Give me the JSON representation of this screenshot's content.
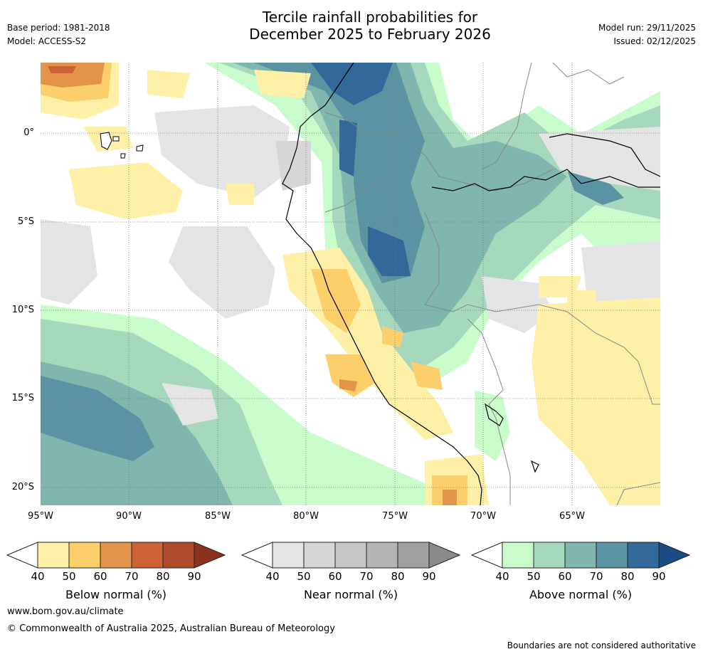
{
  "header": {
    "title_line1": "Tercile rainfall probabilities for",
    "title_line2": "December 2025 to February 2026",
    "base_period": "Base period: 1981-2018",
    "model": "Model: ACCESS-S2",
    "model_run": "Model run: 29/11/2025",
    "issued": "Issued: 02/12/2025"
  },
  "map": {
    "x_ticks": [
      "95°W",
      "90°W",
      "85°W",
      "80°W",
      "75°W",
      "70°W",
      "65°W"
    ],
    "y_ticks": [
      "0°",
      "5°S",
      "10°S",
      "15°S",
      "20°S"
    ],
    "region": "South America – Pacific coast (Ecuador, Peru, northern Chile, Bolivia, western Brazil)"
  },
  "legend": [
    {
      "label": "Below normal (%)",
      "ticks": [
        "40",
        "50",
        "60",
        "70",
        "80",
        "90"
      ],
      "colors": [
        "#fff0a8",
        "#fdcf6a",
        "#e3934a",
        "#cd6234",
        "#ad4a2a"
      ],
      "arrow_color": "#8c3320"
    },
    {
      "label": "Near normal (%)",
      "ticks": [
        "40",
        "50",
        "60",
        "70",
        "80",
        "90"
      ],
      "colors": [
        "#e4e4e4",
        "#d6d6d6",
        "#c6c6c6",
        "#b4b4b4",
        "#a0a0a0"
      ],
      "arrow_color": "#8a8a8a"
    },
    {
      "label": "Above normal (%)",
      "ticks": [
        "40",
        "50",
        "60",
        "70",
        "80",
        "90"
      ],
      "colors": [
        "#c9fccb",
        "#a6d8bd",
        "#7fb6ae",
        "#5a93a1",
        "#33689a"
      ],
      "arrow_color": "#1b4d85"
    }
  ],
  "footer": {
    "url": "www.bom.gov.au/climate",
    "copyright": "© Commonwealth of Australia 2025, Australian Bureau of Meteorology",
    "disclaimer": "Boundaries are not considered authoritative"
  }
}
